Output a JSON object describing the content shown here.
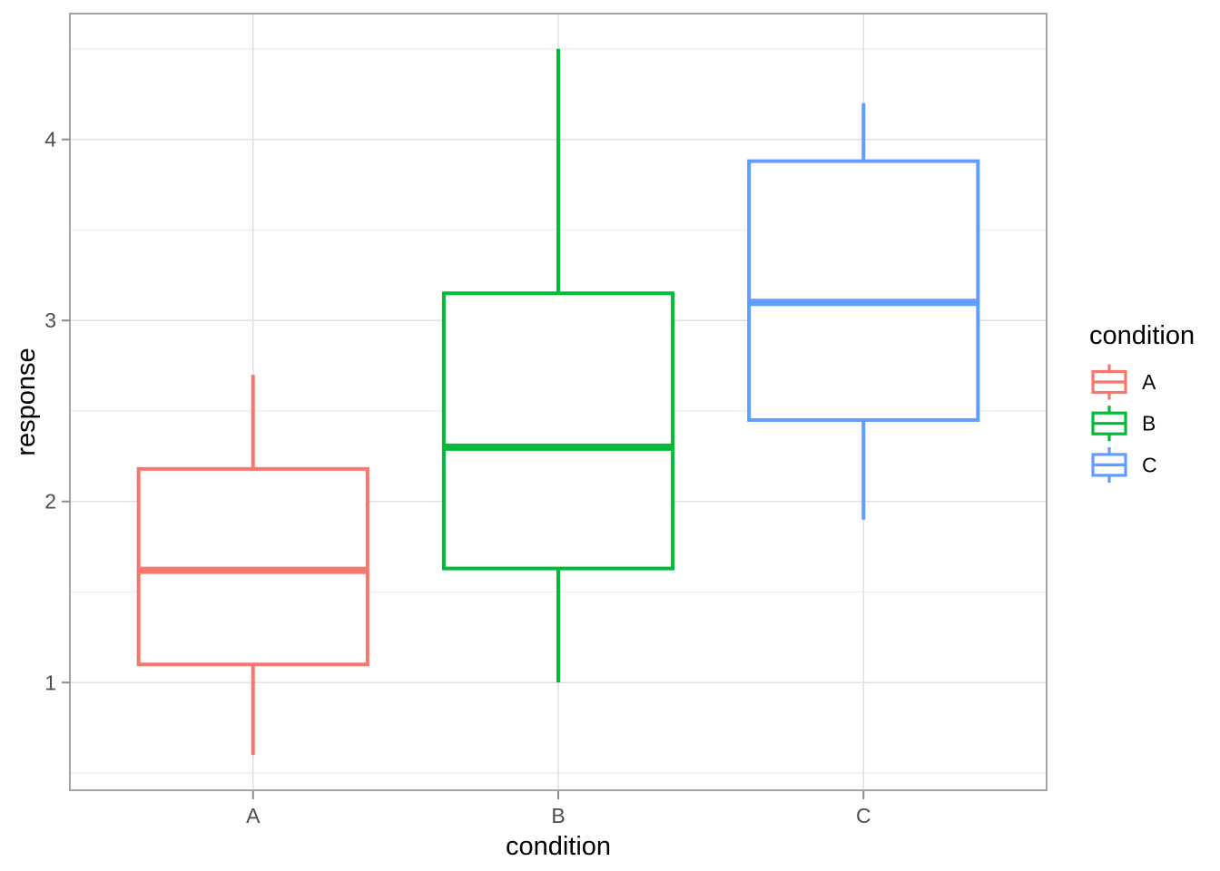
{
  "chart_data": {
    "type": "boxplot",
    "title": "",
    "xlabel": "condition",
    "ylabel": "response",
    "categories": [
      "A",
      "B",
      "C"
    ],
    "series": [
      {
        "name": "A",
        "color": "#F8766D",
        "whisker_low": 0.6,
        "q1": 1.1,
        "median": 1.62,
        "q3": 2.18,
        "whisker_high": 2.7
      },
      {
        "name": "B",
        "color": "#00BA38",
        "whisker_low": 1.0,
        "q1": 1.63,
        "median": 2.3,
        "q3": 3.15,
        "whisker_high": 4.5
      },
      {
        "name": "C",
        "color": "#619CFF",
        "whisker_low": 1.9,
        "q1": 2.45,
        "median": 3.1,
        "q3": 3.88,
        "whisker_high": 4.2
      }
    ],
    "y_ticks": [
      1,
      2,
      3,
      4
    ],
    "y_minor_ticks": [
      0.5,
      1.5,
      2.5,
      3.5,
      4.5
    ],
    "ylim": [
      0.405,
      4.695
    ],
    "grid": "on",
    "legend": {
      "title": "condition",
      "position": "right",
      "entries": [
        {
          "label": "A",
          "color": "#F8766D"
        },
        {
          "label": "B",
          "color": "#00BA38"
        },
        {
          "label": "C",
          "color": "#619CFF"
        }
      ]
    },
    "theme": {
      "background": "#FFFFFF",
      "panel_background": "#FFFFFF",
      "panel_border": "#A3A3A3",
      "grid_major": "#E2E2E2",
      "grid_minor": "#F0F0F0",
      "tick_mark": "#8C8C8C",
      "tick_label": "#4D4D4D",
      "text": "#000000"
    }
  }
}
